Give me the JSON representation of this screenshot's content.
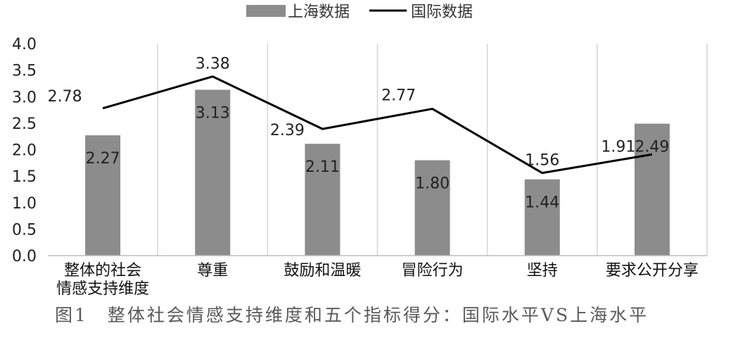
{
  "chart_data": {
    "type": "bar+line",
    "categories": [
      [
        "整体的社会",
        "情感支持维度"
      ],
      [
        "尊重"
      ],
      [
        "鼓励和温暖"
      ],
      [
        "冒险行为"
      ],
      [
        "坚持"
      ],
      [
        "要求公开分享"
      ]
    ],
    "series": [
      {
        "name": "上海数据",
        "type": "bar",
        "values": [
          2.27,
          3.13,
          2.11,
          1.8,
          1.44,
          2.49
        ],
        "color": "#8c8c8c"
      },
      {
        "name": "国际数据",
        "type": "line",
        "values": [
          2.78,
          3.38,
          2.39,
          2.77,
          1.56,
          1.91
        ],
        "color": "#000000"
      }
    ],
    "ylim": [
      0,
      4.0
    ],
    "yticks": [
      "0.0",
      "0.5",
      "1.0",
      "1.5",
      "2.0",
      "2.5",
      "3.0",
      "3.5",
      "4.0"
    ],
    "grid": "vertical",
    "legend_position": "top"
  },
  "caption": "图1　整体社会情感支持维度和五个指标得分：国际水平VS上海水平"
}
